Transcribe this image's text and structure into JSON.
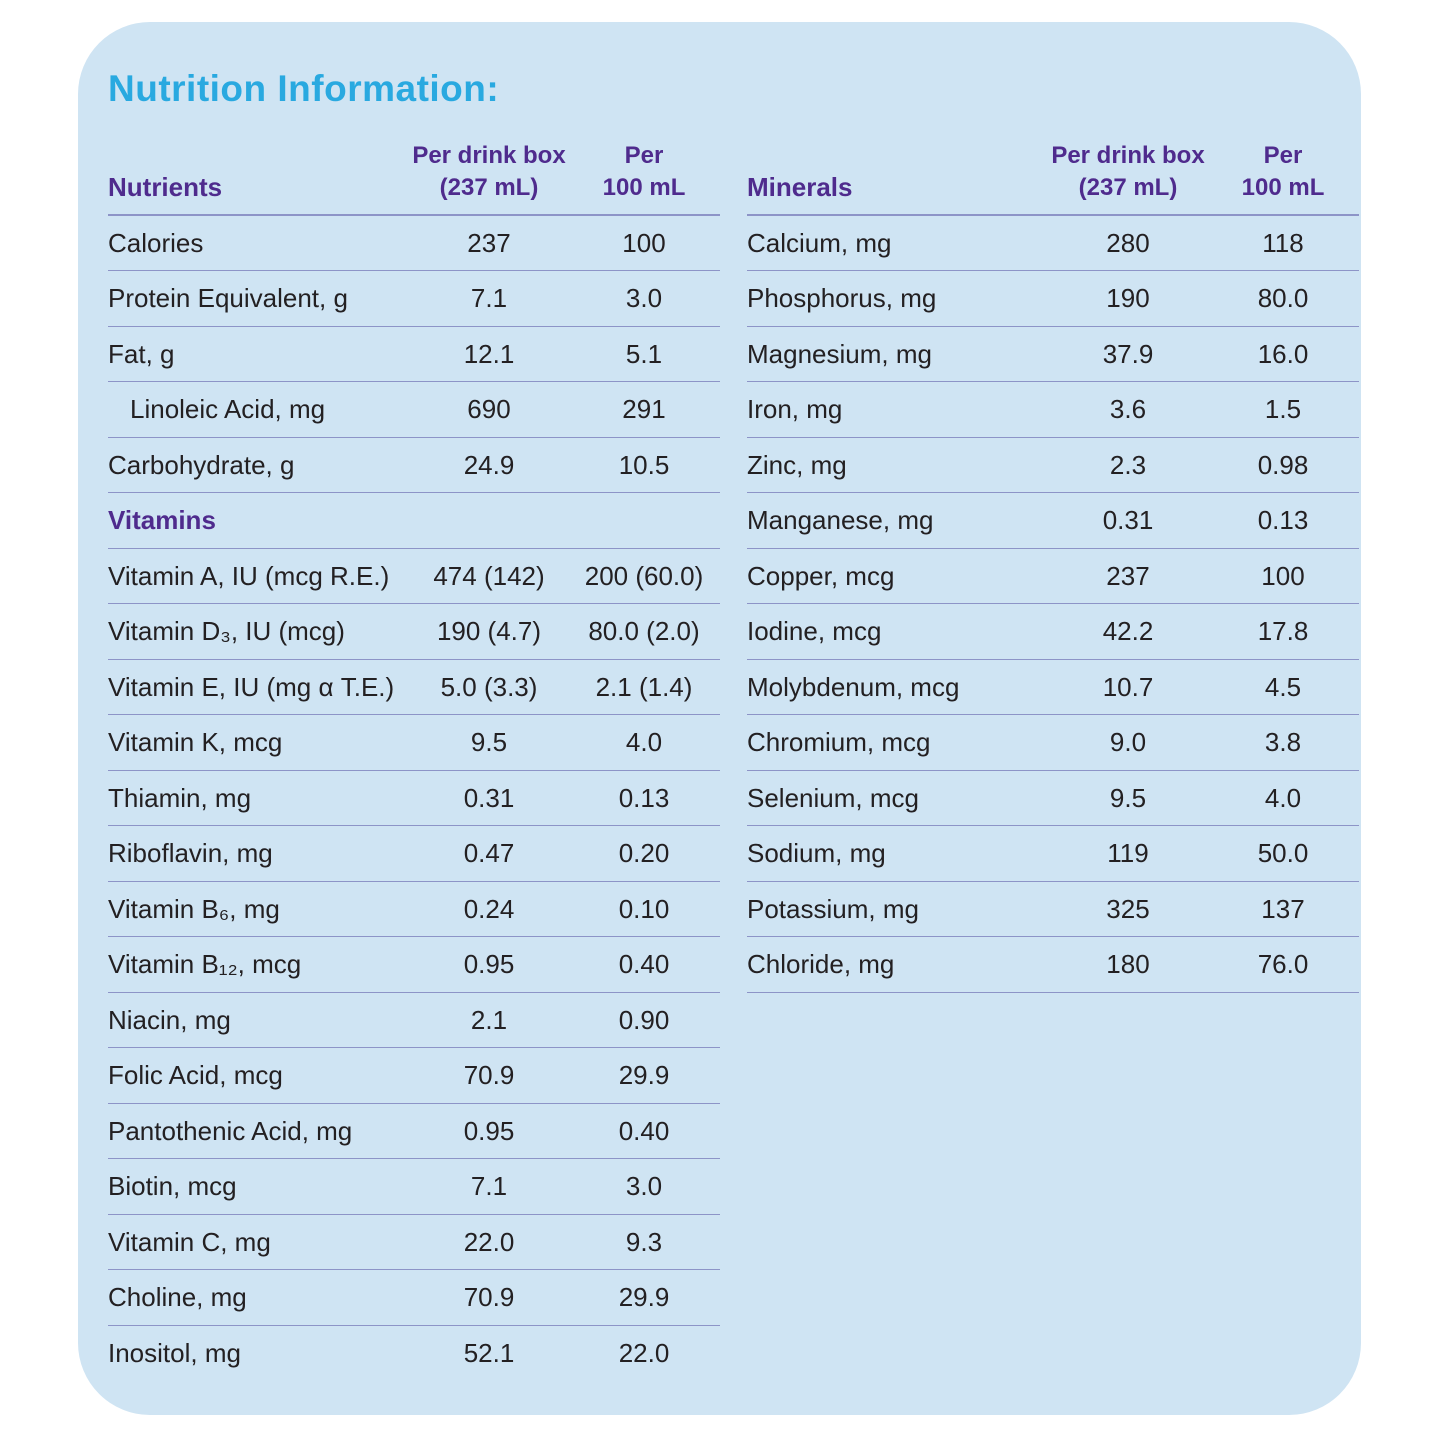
{
  "title": "Nutrition Information:",
  "colors": {
    "card_background": "#cfe4f3",
    "title_blue": "#29a9e0",
    "heading_purple": "#4f2b8d",
    "rule_line": "#8d94c7",
    "body_text": "#232022"
  },
  "tables": [
    {
      "name": "Nutrients",
      "columns": [
        "Per drink box\n(237 mL)",
        "Per\n100 mL"
      ],
      "rows": [
        {
          "label": "Calories",
          "per_drink_box": "237",
          "per_100ml": "100"
        },
        {
          "label": "Protein Equivalent, g",
          "per_drink_box": "7.1",
          "per_100ml": "3.0"
        },
        {
          "label": "Fat, g",
          "per_drink_box": "12.1",
          "per_100ml": "5.1"
        },
        {
          "label": "Linoleic Acid, mg",
          "indent": true,
          "per_drink_box": "690",
          "per_100ml": "291"
        },
        {
          "label": "Carbohydrate, g",
          "per_drink_box": "24.9",
          "per_100ml": "10.5"
        },
        {
          "label": "Vitamins",
          "section": true
        },
        {
          "label": "Vitamin A, IU (mcg R.E.)",
          "per_drink_box": "474 (142)",
          "per_100ml": "200 (60.0)"
        },
        {
          "label": "Vitamin D₃, IU (mcg)",
          "per_drink_box": "190 (4.7)",
          "per_100ml": "80.0 (2.0)"
        },
        {
          "label": "Vitamin E, IU (mg α T.E.)",
          "per_drink_box": "5.0 (3.3)",
          "per_100ml": "2.1 (1.4)"
        },
        {
          "label": "Vitamin K, mcg",
          "per_drink_box": "9.5",
          "per_100ml": "4.0"
        },
        {
          "label": "Thiamin, mg",
          "per_drink_box": "0.31",
          "per_100ml": "0.13"
        },
        {
          "label": "Riboflavin, mg",
          "per_drink_box": "0.47",
          "per_100ml": "0.20"
        },
        {
          "label": "Vitamin B₆, mg",
          "per_drink_box": "0.24",
          "per_100ml": "0.10"
        },
        {
          "label": "Vitamin B₁₂, mcg",
          "per_drink_box": "0.95",
          "per_100ml": "0.40"
        },
        {
          "label": "Niacin, mg",
          "per_drink_box": "2.1",
          "per_100ml": "0.90"
        },
        {
          "label": "Folic Acid, mcg",
          "per_drink_box": "70.9",
          "per_100ml": "29.9"
        },
        {
          "label": "Pantothenic Acid, mg",
          "per_drink_box": "0.95",
          "per_100ml": "0.40"
        },
        {
          "label": "Biotin, mcg",
          "per_drink_box": "7.1",
          "per_100ml": "3.0"
        },
        {
          "label": "Vitamin C, mg",
          "per_drink_box": "22.0",
          "per_100ml": "9.3"
        },
        {
          "label": "Choline, mg",
          "per_drink_box": "70.9",
          "per_100ml": "29.9"
        },
        {
          "label": "Inositol, mg",
          "per_drink_box": "52.1",
          "per_100ml": "22.0"
        }
      ]
    },
    {
      "name": "Minerals",
      "columns": [
        "Per drink box\n(237 mL)",
        "Per\n100 mL"
      ],
      "rows": [
        {
          "label": "Calcium, mg",
          "per_drink_box": "280",
          "per_100ml": "118"
        },
        {
          "label": "Phosphorus, mg",
          "per_drink_box": "190",
          "per_100ml": "80.0"
        },
        {
          "label": "Magnesium, mg",
          "per_drink_box": "37.9",
          "per_100ml": "16.0"
        },
        {
          "label": "Iron, mg",
          "per_drink_box": "3.6",
          "per_100ml": "1.5"
        },
        {
          "label": "Zinc, mg",
          "per_drink_box": "2.3",
          "per_100ml": "0.98"
        },
        {
          "label": "Manganese, mg",
          "per_drink_box": "0.31",
          "per_100ml": "0.13"
        },
        {
          "label": "Copper, mcg",
          "per_drink_box": "237",
          "per_100ml": "100"
        },
        {
          "label": "Iodine, mcg",
          "per_drink_box": "42.2",
          "per_100ml": "17.8"
        },
        {
          "label": "Molybdenum, mcg",
          "per_drink_box": "10.7",
          "per_100ml": "4.5"
        },
        {
          "label": "Chromium, mcg",
          "per_drink_box": "9.0",
          "per_100ml": "3.8"
        },
        {
          "label": "Selenium, mcg",
          "per_drink_box": "9.5",
          "per_100ml": "4.0"
        },
        {
          "label": "Sodium, mg",
          "per_drink_box": "119",
          "per_100ml": "50.0"
        },
        {
          "label": "Potassium, mg",
          "per_drink_box": "325",
          "per_100ml": "137"
        },
        {
          "label": "Chloride, mg",
          "per_drink_box": "180",
          "per_100ml": "76.0"
        }
      ]
    }
  ]
}
